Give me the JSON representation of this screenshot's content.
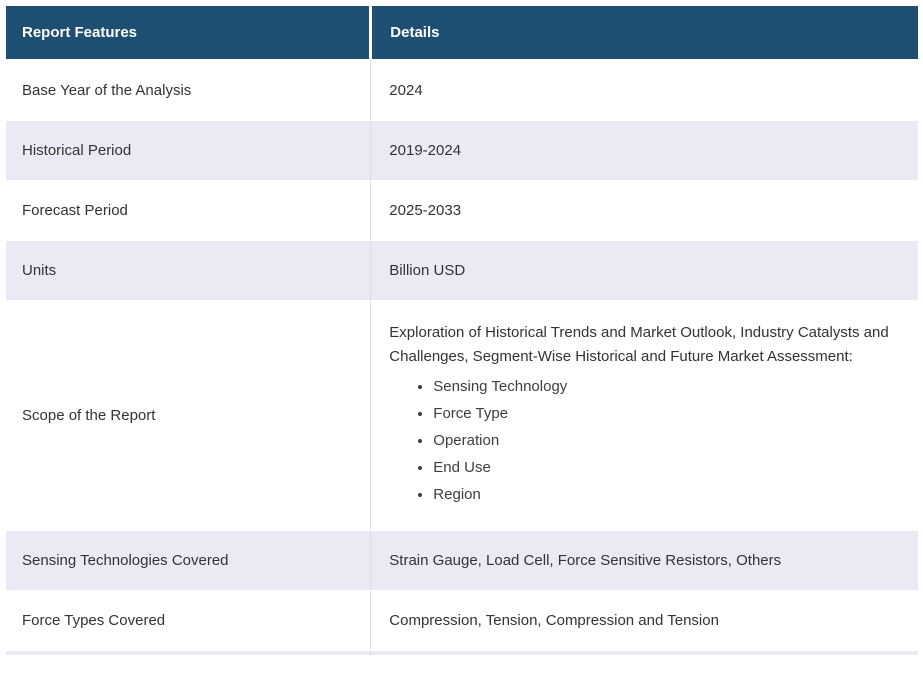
{
  "table": {
    "columns": {
      "feature": "Report Features",
      "details": "Details"
    },
    "rows": [
      {
        "feature": "Base Year of the Analysis",
        "detail": "2024"
      },
      {
        "feature": "Historical Period",
        "detail": "2019-2024"
      },
      {
        "feature": "Forecast Period",
        "detail": "2025-2033"
      },
      {
        "feature": "Units",
        "detail": "Billion USD"
      },
      {
        "feature": "Scope of the Report",
        "detail_intro": "Exploration of Historical Trends and Market Outlook, Industry Catalysts and Challenges, Segment-Wise Historical and Future Market Assessment:",
        "detail_bullets": [
          "Sensing Technology",
          "Force Type",
          "Operation",
          "End Use",
          "Region"
        ]
      },
      {
        "feature": "Sensing Technologies Covered",
        "detail": "Strain Gauge, Load Cell, Force Sensitive Resistors, Others"
      },
      {
        "feature": "Force Types Covered",
        "detail": "Compression, Tension, Compression and Tension"
      }
    ],
    "colors": {
      "header_bg": "#1F4E73",
      "header_text": "#FFFFFF",
      "row_bg": "#FFFFFF",
      "row_alt_bg": "#E9EAF4",
      "divider": "#DCDCE4",
      "body_text": "#333333"
    }
  }
}
